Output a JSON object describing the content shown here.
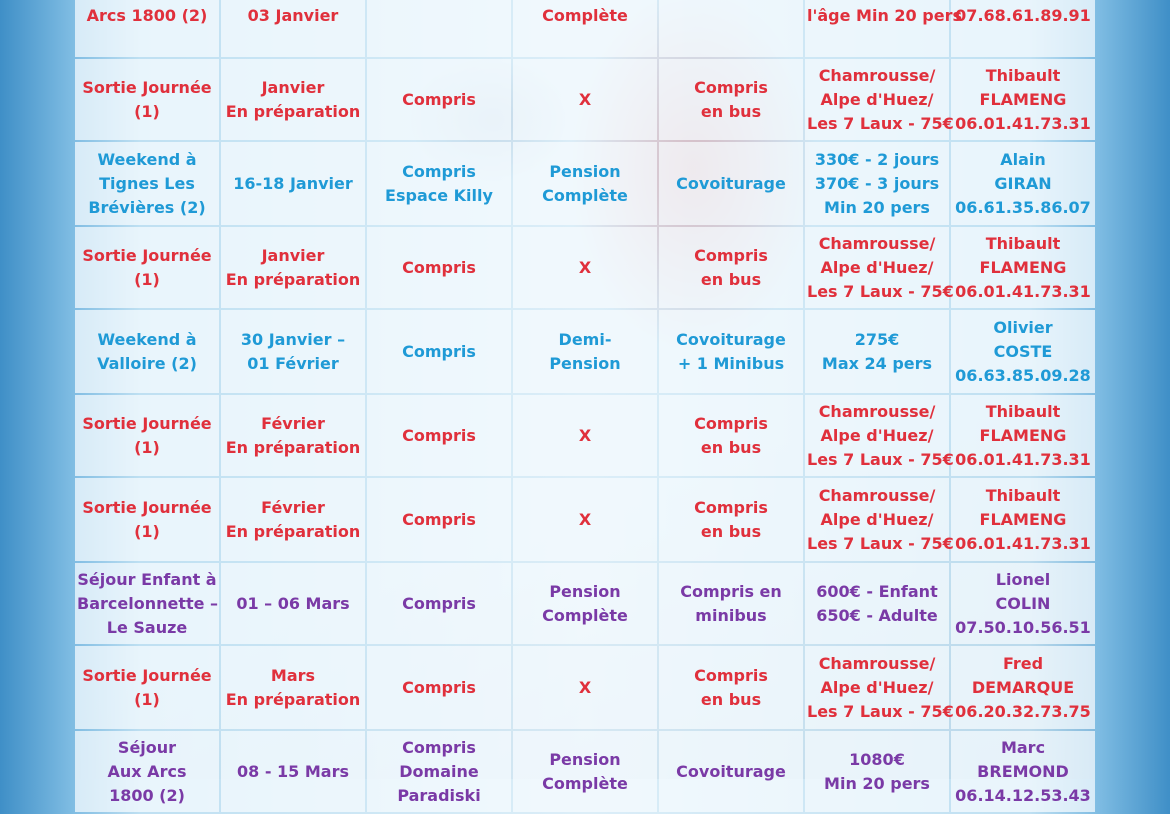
{
  "rows": [
    {
      "color": "red",
      "cells": [
        [
          "Arcs 1800 (2)"
        ],
        [
          "03 Janvier"
        ],
        [
          ""
        ],
        [
          "Complète"
        ],
        [
          ""
        ],
        [
          "l'âge Min 20 pers"
        ],
        [
          "07.68.61.89.91"
        ]
      ]
    },
    {
      "color": "red",
      "cells": [
        [
          "Sortie Journée",
          "(1)"
        ],
        [
          "Janvier",
          "En préparation"
        ],
        [
          "Compris"
        ],
        [
          "X"
        ],
        [
          "Compris",
          "en bus"
        ],
        [
          "Chamrousse/",
          "Alpe d'Huez/",
          "Les 7 Laux - 75€"
        ],
        [
          "Thibault",
          "FLAMENG",
          "06.01.41.73.31"
        ]
      ]
    },
    {
      "color": "blue",
      "cells": [
        [
          "Weekend à",
          "Tignes Les",
          "Brévières (2)"
        ],
        [
          "16-18 Janvier"
        ],
        [
          "Compris",
          "Espace Killy"
        ],
        [
          "Pension",
          "Complète"
        ],
        [
          "Covoiturage"
        ],
        [
          "330€ - 2 jours",
          "370€ - 3 jours",
          "Min 20 pers"
        ],
        [
          "Alain",
          "GIRAN",
          "06.61.35.86.07"
        ]
      ]
    },
    {
      "color": "red",
      "cells": [
        [
          "Sortie Journée",
          "(1)"
        ],
        [
          "Janvier",
          "En préparation"
        ],
        [
          "Compris"
        ],
        [
          "X"
        ],
        [
          "Compris",
          "en bus"
        ],
        [
          "Chamrousse/",
          "Alpe d'Huez/",
          "Les 7 Laux - 75€"
        ],
        [
          "Thibault",
          "FLAMENG",
          "06.01.41.73.31"
        ]
      ]
    },
    {
      "color": "blue",
      "cells": [
        [
          "Weekend à",
          "Valloire (2)"
        ],
        [
          "30 Janvier –",
          "01 Février"
        ],
        [
          "Compris"
        ],
        [
          "Demi-",
          "Pension"
        ],
        [
          "Covoiturage",
          "+ 1 Minibus"
        ],
        [
          "275€",
          "Max 24 pers"
        ],
        [
          "Olivier",
          "COSTE",
          "06.63.85.09.28"
        ]
      ]
    },
    {
      "color": "red",
      "cells": [
        [
          "Sortie Journée",
          "(1)"
        ],
        [
          "Février",
          "En préparation"
        ],
        [
          "Compris"
        ],
        [
          "X"
        ],
        [
          "Compris",
          "en bus"
        ],
        [
          "Chamrousse/",
          "Alpe d'Huez/",
          "Les 7 Laux - 75€"
        ],
        [
          "Thibault",
          "FLAMENG",
          "06.01.41.73.31"
        ]
      ]
    },
    {
      "color": "red",
      "cells": [
        [
          "Sortie Journée",
          "(1)"
        ],
        [
          "Février",
          "En préparation"
        ],
        [
          "Compris"
        ],
        [
          "X"
        ],
        [
          "Compris",
          "en bus"
        ],
        [
          "Chamrousse/",
          "Alpe d'Huez/",
          "Les 7 Laux - 75€"
        ],
        [
          "Thibault",
          "FLAMENG",
          "06.01.41.73.31"
        ]
      ]
    },
    {
      "color": "purple",
      "cells": [
        [
          "Séjour Enfant à",
          "Barcelonnette –",
          "Le Sauze"
        ],
        [
          "01 – 06 Mars"
        ],
        [
          "Compris"
        ],
        [
          "Pension",
          "Complète"
        ],
        [
          "Compris en",
          "minibus"
        ],
        [
          "600€ - Enfant",
          "650€ - Adulte"
        ],
        [
          "Lionel",
          "COLIN",
          "07.50.10.56.51"
        ]
      ]
    },
    {
      "color": "red",
      "cells": [
        [
          "Sortie Journée",
          "(1)"
        ],
        [
          "Mars",
          "En préparation"
        ],
        [
          "Compris"
        ],
        [
          "X"
        ],
        [
          "Compris",
          "en bus"
        ],
        [
          "Chamrousse/",
          "Alpe d'Huez/",
          "Les 7 Laux - 75€"
        ],
        [
          "Fred",
          "DEMARQUE",
          "06.20.32.73.75"
        ]
      ]
    },
    {
      "color": "purple",
      "cells": [
        [
          "Séjour",
          "Aux Arcs",
          "1800 (2)"
        ],
        [
          "08 - 15 Mars"
        ],
        [
          "Compris",
          "Domaine",
          "Paradiski"
        ],
        [
          "Pension",
          "Complète"
        ],
        [
          "Covoiturage"
        ],
        [
          "1080€",
          "Min 20 pers"
        ],
        [
          "Marc",
          "BREMOND",
          "06.14.12.53.43"
        ]
      ]
    }
  ]
}
